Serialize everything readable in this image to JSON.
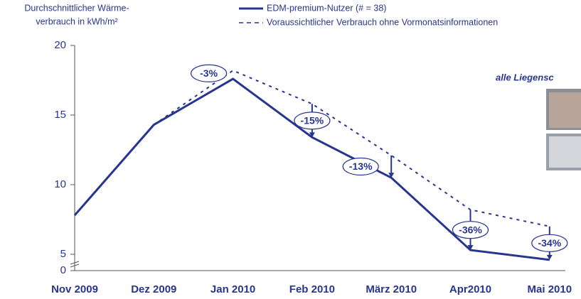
{
  "chart_data": {
    "type": "line",
    "y_axis_label": [
      "Durchschnittlicher Wärme-",
      "verbrauch in kWh/m²"
    ],
    "categories": [
      "Nov 2009",
      "Dez 2009",
      "Jan 2010",
      "Feb 2010",
      "März 2010",
      "Apr2010",
      "Mai 2010"
    ],
    "series": [
      {
        "name": "EDM-premium-Nutzer (# = 38)",
        "color": "#27358f",
        "dash": false,
        "values": [
          7.8,
          14.3,
          17.6,
          13.4,
          10.5,
          5.3,
          4.6
        ]
      },
      {
        "name": "Voraussichtlicher Verbrauch ohne Vormonatsinformationen",
        "color": "#27358f",
        "dash": true,
        "values": [
          null,
          14.3,
          18.2,
          15.8,
          12.1,
          8.2,
          7.0
        ]
      }
    ],
    "reduction_labels": [
      null,
      null,
      "-3%",
      "-15%",
      "-13%",
      "-36%",
      "-34%"
    ],
    "ylim": [
      0,
      20
    ],
    "yticks": [
      0,
      5,
      10,
      15,
      20
    ],
    "axis_break": true,
    "side_note": "alle Liegensc"
  }
}
